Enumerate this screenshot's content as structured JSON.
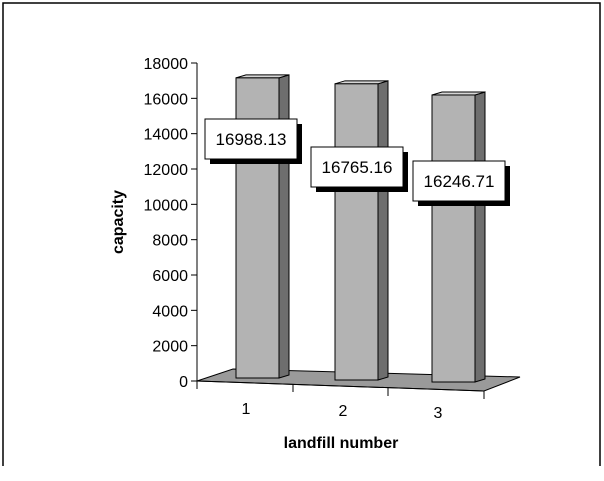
{
  "chart_data": {
    "type": "bar",
    "style": "3d-column",
    "title": "",
    "xlabel": "landfill number",
    "ylabel": "capacity",
    "categories": [
      "1",
      "2",
      "3"
    ],
    "values": [
      16988.13,
      16765.16,
      16246.71
    ],
    "data_labels": [
      "16988.13",
      "16765.16",
      "16246.71"
    ],
    "ylim": [
      0,
      18000
    ],
    "yticks": [
      "0",
      "2000",
      "4000",
      "6000",
      "8000",
      "10000",
      "12000",
      "14000",
      "16000",
      "18000"
    ],
    "grid": false,
    "legend": "none",
    "colors": {
      "bar_front": "#b3b3b3",
      "bar_side": "#6e6e6e",
      "bar_top": "#d6d6d6",
      "floor": "#9a9a9a"
    }
  }
}
